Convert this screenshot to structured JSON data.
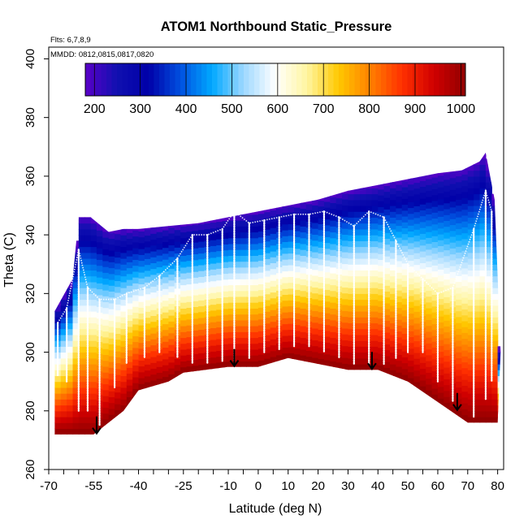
{
  "chart_data": {
    "type": "heatmap",
    "title": "ATOM1 Northbound Static_Pressure",
    "annotations": {
      "flights": "Flts: 6,7,8,9",
      "dates": "MMDD: 0812,0815,0817,0820"
    },
    "xlabel": "Latitude (deg N)",
    "ylabel": "Theta (C)",
    "xlim": [
      -70,
      82
    ],
    "ylim": [
      260,
      404
    ],
    "x_ticks": [
      -70,
      -55,
      -40,
      -25,
      -10,
      0,
      10,
      20,
      30,
      40,
      50,
      60,
      70,
      80
    ],
    "y_ticks": [
      260,
      280,
      300,
      320,
      340,
      360,
      380,
      400
    ],
    "colorbar": {
      "label_ticks": [
        200,
        300,
        400,
        500,
        600,
        700,
        800,
        900,
        1000
      ],
      "min": 180,
      "max": 1010,
      "colors": [
        "#5a00c8",
        "#1010b0",
        "#0000a8",
        "#0050e0",
        "#00a8ff",
        "#9ed8ff",
        "#ffffff",
        "#fff5a0",
        "#ffc800",
        "#ff8000",
        "#ff3000",
        "#d00000",
        "#900000"
      ]
    },
    "top_boundary": [
      [
        -68,
        314
      ],
      [
        -62,
        325
      ],
      [
        -60,
        346
      ],
      [
        -56,
        346
      ],
      [
        -50,
        341
      ],
      [
        -45,
        342
      ],
      [
        -40,
        342
      ],
      [
        -30,
        343
      ],
      [
        -20,
        344
      ],
      [
        -10,
        346
      ],
      [
        0,
        348
      ],
      [
        10,
        350
      ],
      [
        20,
        352
      ],
      [
        30,
        355
      ],
      [
        40,
        357
      ],
      [
        50,
        359
      ],
      [
        60,
        361
      ],
      [
        68,
        362
      ],
      [
        74,
        365
      ],
      [
        76,
        368
      ],
      [
        79,
        352
      ],
      [
        81,
        300
      ]
    ],
    "bottom_boundary": [
      [
        -68,
        272
      ],
      [
        -60,
        272
      ],
      [
        -55,
        272
      ],
      [
        -50,
        276
      ],
      [
        -45,
        280
      ],
      [
        -40,
        287
      ],
      [
        -30,
        290
      ],
      [
        -25,
        293
      ],
      [
        -10,
        295
      ],
      [
        0,
        295
      ],
      [
        10,
        298
      ],
      [
        20,
        296
      ],
      [
        30,
        294
      ],
      [
        40,
        294
      ],
      [
        50,
        290
      ],
      [
        60,
        283
      ],
      [
        70,
        276
      ],
      [
        75,
        276
      ],
      [
        80,
        276
      ]
    ],
    "surface_marks": [
      {
        "lat": -54.0,
        "theta": 272
      },
      {
        "lat": -8.0,
        "theta": 295
      },
      {
        "lat": 38.0,
        "theta": 294
      },
      {
        "lat": 66.5,
        "theta": 280
      }
    ],
    "flight_profiles": [
      {
        "lat": -67,
        "top": 310,
        "bottom": 292
      },
      {
        "lat": -64,
        "top": 315,
        "bottom": 290
      },
      {
        "lat": -60,
        "top": 335,
        "bottom": 280
      },
      {
        "lat": -57,
        "top": 322,
        "bottom": 280
      },
      {
        "lat": -53,
        "top": 318,
        "bottom": 275
      },
      {
        "lat": -48,
        "top": 318,
        "bottom": 288
      },
      {
        "lat": -44,
        "top": 320,
        "bottom": 296
      },
      {
        "lat": -38,
        "top": 322,
        "bottom": 298
      },
      {
        "lat": -33,
        "top": 326,
        "bottom": 300
      },
      {
        "lat": -27,
        "top": 332,
        "bottom": 298
      },
      {
        "lat": -22,
        "top": 340,
        "bottom": 296
      },
      {
        "lat": -17,
        "top": 340,
        "bottom": 296
      },
      {
        "lat": -12,
        "top": 342,
        "bottom": 297
      },
      {
        "lat": -8,
        "top": 348,
        "bottom": 297
      },
      {
        "lat": -3,
        "top": 344,
        "bottom": 298
      },
      {
        "lat": 2,
        "top": 345,
        "bottom": 300
      },
      {
        "lat": 7,
        "top": 346,
        "bottom": 301
      },
      {
        "lat": 12,
        "top": 347,
        "bottom": 302
      },
      {
        "lat": 17,
        "top": 347,
        "bottom": 302
      },
      {
        "lat": 22,
        "top": 348,
        "bottom": 300
      },
      {
        "lat": 27,
        "top": 346,
        "bottom": 298
      },
      {
        "lat": 32,
        "top": 343,
        "bottom": 296
      },
      {
        "lat": 37,
        "top": 348,
        "bottom": 296
      },
      {
        "lat": 42,
        "top": 346,
        "bottom": 296
      },
      {
        "lat": 46,
        "top": 338,
        "bottom": 298
      },
      {
        "lat": 50,
        "top": 330,
        "bottom": 300
      },
      {
        "lat": 55,
        "top": 325,
        "bottom": 300
      },
      {
        "lat": 60,
        "top": 320,
        "bottom": 290
      },
      {
        "lat": 65,
        "top": 322,
        "bottom": 283
      },
      {
        "lat": 72,
        "top": 342,
        "bottom": 278
      },
      {
        "lat": 76,
        "top": 355,
        "bottom": 284
      },
      {
        "lat": 78,
        "top": 348,
        "bottom": 290
      }
    ]
  }
}
